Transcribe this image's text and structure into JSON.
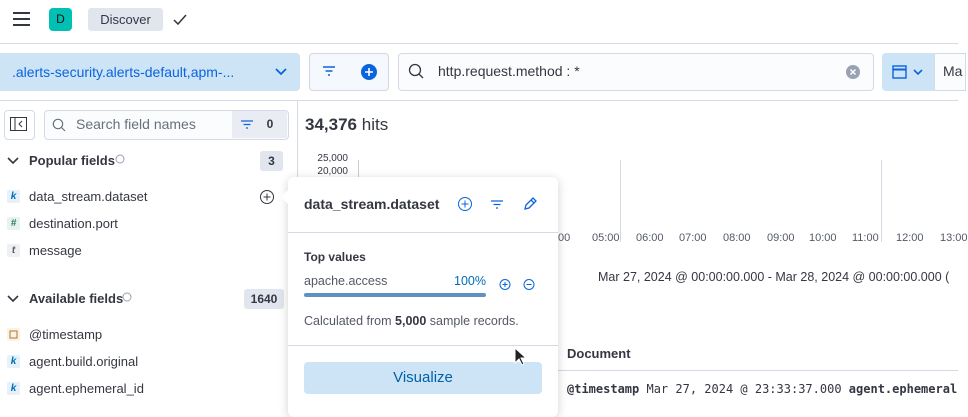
{
  "header": {
    "avatar": "D",
    "breadcrumb": "Discover"
  },
  "query_bar": {
    "index_pattern": ".alerts-security.alerts-default,apm-...",
    "query": "http.request.method : *",
    "date_start": "Ma"
  },
  "sidebar": {
    "search_placeholder": "Search field names",
    "filter_count": "0",
    "popular": {
      "title": "Popular fields",
      "count": "3",
      "fields": [
        {
          "type": "k",
          "name": "data_stream.dataset"
        },
        {
          "type": "#",
          "name": "destination.port"
        },
        {
          "type": "t",
          "name": "message"
        }
      ]
    },
    "available": {
      "title": "Available fields",
      "count": "1640",
      "fields": [
        {
          "name": "@timestamp"
        },
        {
          "type": "k",
          "name": "agent.build.original"
        },
        {
          "type": "k",
          "name": "agent.ephemeral_id"
        }
      ]
    }
  },
  "hits": {
    "count": "34,376",
    "label": "hits"
  },
  "histogram": {
    "y_labels": [
      "25,000",
      "20,000"
    ],
    "x_labels": [
      "00",
      "05:00",
      "06:00",
      "07:00",
      "08:00",
      "09:00",
      "10:00",
      "11:00",
      "12:00",
      "13:00"
    ],
    "time_range": "Mar 27, 2024 @ 00:00:00.000 - Mar 28, 2024 @ 00:00:00.000 ("
  },
  "table": {
    "header": "Document",
    "row": {
      "field": "@timestamp",
      "value": "Mar 27, 2024 @ 23:33:37.000",
      "next_field": "agent.ephemeral"
    }
  },
  "popover": {
    "title": "data_stream.dataset",
    "section": "Top values",
    "top_value": {
      "name": "apache.access",
      "percent": "100%"
    },
    "note": {
      "before": "Calculated from",
      "bold": "5,000",
      "after": "sample records."
    },
    "button": "Visualize"
  }
}
